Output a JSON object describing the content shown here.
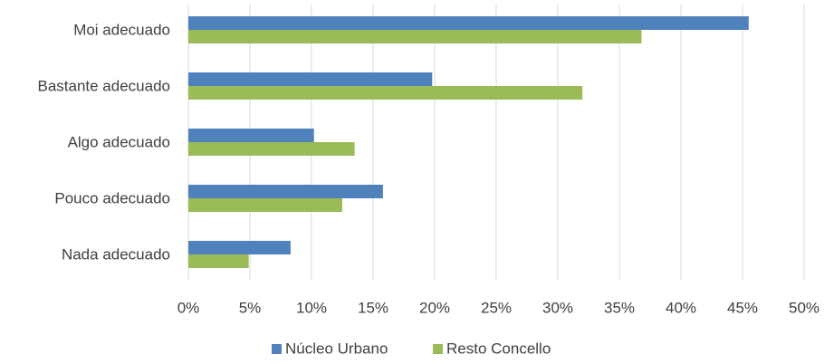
{
  "chart_data": {
    "type": "hbar",
    "categories": [
      "Moi adecuado",
      "Bastante adecuado",
      "Algo adecuado",
      "Pouco adecuado",
      "Nada adecuado"
    ],
    "series": [
      {
        "name": "Núcleo Urbano",
        "color": "#4f81bd",
        "values": [
          45.5,
          19.8,
          10.2,
          15.8,
          8.3
        ]
      },
      {
        "name": "Resto Concello",
        "color": "#9bbb59",
        "values": [
          36.8,
          32.0,
          13.5,
          12.5,
          4.9
        ]
      }
    ],
    "xlim": [
      0,
      50
    ],
    "xticks": [
      {
        "value": 0,
        "label": "0%"
      },
      {
        "value": 5,
        "label": "5%"
      },
      {
        "value": 10,
        "label": "10%"
      },
      {
        "value": 15,
        "label": "15%"
      },
      {
        "value": 20,
        "label": "20%"
      },
      {
        "value": 25,
        "label": "25%"
      },
      {
        "value": 30,
        "label": "30%"
      },
      {
        "value": 35,
        "label": "35%"
      },
      {
        "value": 40,
        "label": "40%"
      },
      {
        "value": 45,
        "label": "45%"
      },
      {
        "value": 50,
        "label": "50%"
      }
    ],
    "grid": true,
    "legend": "bottom"
  }
}
